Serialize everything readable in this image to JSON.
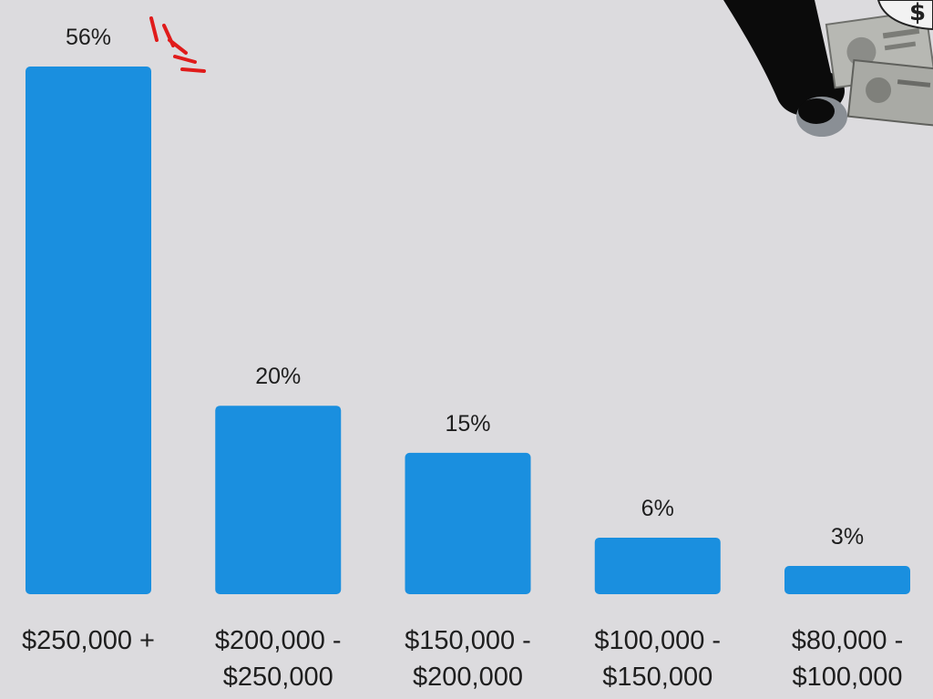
{
  "chart_data": {
    "type": "bar",
    "categories": [
      [
        "$250,000 +"
      ],
      [
        "$200,000 -",
        "$250,000"
      ],
      [
        "$150,000 -",
        "$200,000"
      ],
      [
        "$100,000 -",
        "$150,000"
      ],
      [
        "$80,000 -",
        "$100,000"
      ]
    ],
    "values": [
      56,
      20,
      15,
      6,
      3
    ],
    "value_labels": [
      "56%",
      "20%",
      "15%",
      "6%",
      "3%"
    ],
    "title": "",
    "xlabel": "",
    "ylabel": "",
    "ylim": [
      0,
      56
    ],
    "grid": false,
    "legend": "none",
    "bar_color": "#1a8fdf",
    "accent_color": "#e01b1b"
  },
  "decoration": {
    "icon": "money-bag-with-banknotes-icon",
    "accent_icon": "emphasis-lines-icon"
  }
}
